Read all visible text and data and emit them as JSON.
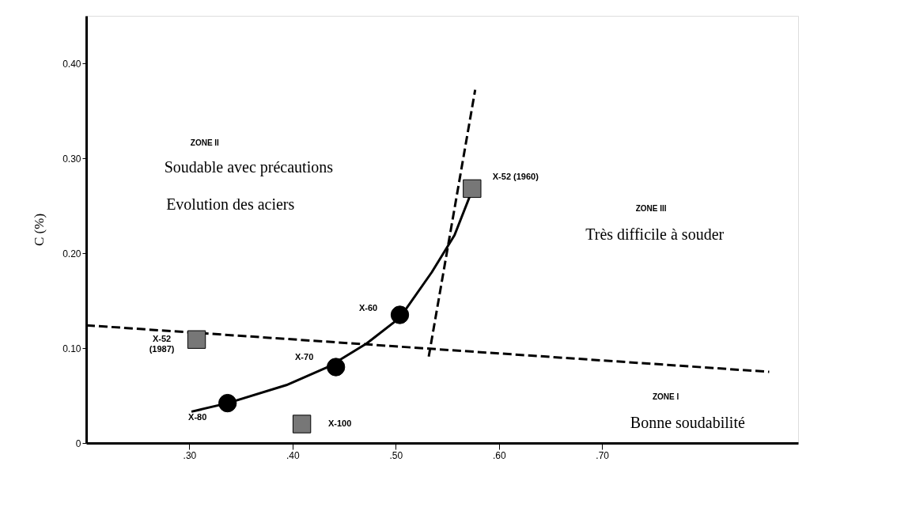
{
  "chart_data": {
    "type": "line",
    "ylabel": "C (%)",
    "xlim": [
      0.2,
      0.89
    ],
    "ylim": [
      0,
      0.45
    ],
    "xticks": [
      {
        "value": 0.3,
        "label": ".30"
      },
      {
        "value": 0.4,
        "label": ".40"
      },
      {
        "value": 0.5,
        "label": ".50"
      },
      {
        "value": 0.6,
        "label": ".60"
      },
      {
        "value": 0.7,
        "label": ".70"
      }
    ],
    "yticks": [
      0,
      {
        "value": 0.1,
        "label": "0.10"
      },
      {
        "value": 0.2,
        "label": "0.20"
      },
      {
        "value": 0.3,
        "label": "0.30"
      },
      {
        "value": 0.4,
        "label": "0.40"
      }
    ],
    "grid": false,
    "series": [
      {
        "line_style": "dashed",
        "color": "#000000",
        "x": [
          0.2,
          0.862
        ],
        "values": [
          0.124,
          0.075
        ]
      },
      {
        "line_style": "dashed",
        "color": "#000000",
        "x": [
          0.532,
          0.577
        ],
        "values": [
          0.091,
          0.372
        ]
      },
      {
        "line_style": "solid",
        "color": "#000000",
        "x": [
          0.302,
          0.337,
          0.394,
          0.436,
          0.472,
          0.504,
          0.535,
          0.557,
          0.574
        ],
        "values": [
          0.033,
          0.042,
          0.061,
          0.081,
          0.105,
          0.132,
          0.18,
          0.219,
          0.266
        ]
      },
      {
        "type": "scatter",
        "marker": "circle",
        "color": "#000000",
        "x": [
          0.337,
          0.442,
          0.504
        ],
        "values": [
          0.042,
          0.08,
          0.135
        ]
      },
      {
        "type": "scatter",
        "marker": "square",
        "color": "#777777",
        "x": [
          0.574,
          0.307,
          0.409
        ],
        "values": [
          0.268,
          0.109,
          0.02
        ]
      }
    ],
    "annotations": [
      "ZONE II",
      "Soudable avec précautions",
      "Evolution des aciers",
      "ZONE III",
      "Très difficile à souder",
      "ZONE I",
      "Bonne soudabilité",
      {
        "text": "X-80",
        "x": 0.337,
        "y": 0.042
      },
      {
        "text": "X-70",
        "x": 0.442,
        "y": 0.08
      },
      {
        "text": "X-60",
        "x": 0.504,
        "y": 0.135
      },
      {
        "text": "X-52 (1960)",
        "x": 0.574,
        "y": 0.268
      },
      {
        "text": "X-52\n(1987)",
        "x": 0.307,
        "y": 0.109
      },
      {
        "text": "X-100",
        "x": 0.409,
        "y": 0.02
      }
    ]
  }
}
